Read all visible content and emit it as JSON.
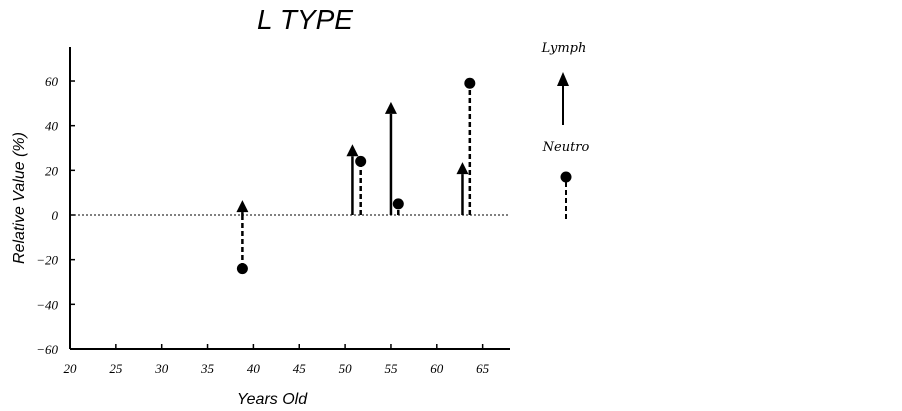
{
  "chart_data": {
    "type": "stem",
    "title": "L  TYPE",
    "xlabel": "Years Old",
    "ylabel": "Relative Value (%)",
    "xlim": [
      20,
      68
    ],
    "ylim": [
      -60,
      75
    ],
    "xticks": [
      20,
      25,
      30,
      35,
      40,
      45,
      50,
      55,
      60,
      65
    ],
    "yticks": [
      -60,
      -40,
      -20,
      0,
      20,
      40,
      60
    ],
    "reference_line": 0,
    "legend_position": "right",
    "series": [
      {
        "name": "Lymph",
        "marker": "triangle",
        "line_style": "solid",
        "points": [
          {
            "x": 38.8,
            "y": 4
          },
          {
            "x": 50.8,
            "y": 29
          },
          {
            "x": 55.0,
            "y": 48
          },
          {
            "x": 62.8,
            "y": 21
          }
        ]
      },
      {
        "name": "Neutro",
        "marker": "circle",
        "line_style": "dashed",
        "points": [
          {
            "x": 38.8,
            "y": -24
          },
          {
            "x": 51.7,
            "y": 24
          },
          {
            "x": 55.8,
            "y": 5
          },
          {
            "x": 63.6,
            "y": 59
          }
        ]
      }
    ],
    "colors": {
      "ink": "#000000",
      "background": "#ffffff"
    }
  }
}
